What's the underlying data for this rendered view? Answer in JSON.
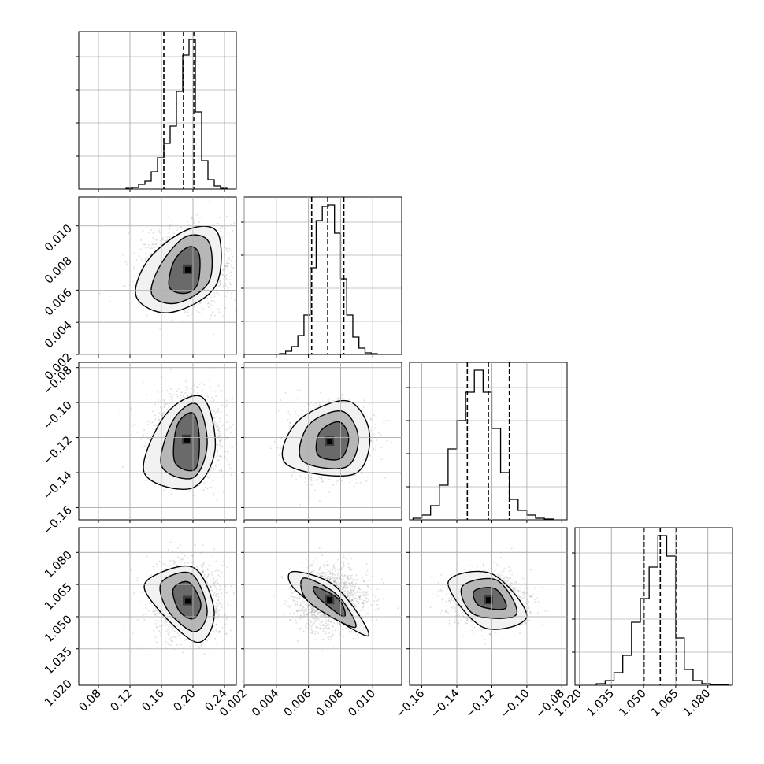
{
  "chart_data": {
    "type": "corner",
    "grid": true,
    "panel_ranges": [
      [
        0.055,
        0.255
      ],
      [
        0.002,
        0.0118
      ],
      [
        -0.167,
        -0.077
      ],
      [
        1.018,
        1.0915
      ]
    ],
    "tick_labels": {
      "x": [
        [
          "0.08",
          "0.12",
          "0.16",
          "0.20",
          "0.24"
        ],
        [
          "0.002",
          "0.004",
          "0.006",
          "0.008",
          "0.010"
        ],
        [
          "−0.16",
          "−0.14",
          "−0.12",
          "−0.10",
          "−0.08"
        ],
        [
          "1.020",
          "1.035",
          "1.050",
          "1.065",
          "1.080"
        ]
      ],
      "y": [
        [],
        [
          "0.002",
          "0.004",
          "0.006",
          "0.008",
          "0.010"
        ],
        [
          "−0.16",
          "−0.14",
          "−0.12",
          "−0.10",
          "−0.08"
        ],
        [
          "1.020",
          "1.035",
          "1.050",
          "1.065",
          "1.080"
        ]
      ]
    },
    "histograms": [
      {
        "param": 0,
        "bin_edges": [
          0.115,
          0.123,
          0.131,
          0.139,
          0.147,
          0.155,
          0.163,
          0.171,
          0.179,
          0.187,
          0.195,
          0.203,
          0.211,
          0.219,
          0.227,
          0.235,
          0.243
        ],
        "values": [
          0.005,
          0.01,
          0.03,
          0.05,
          0.11,
          0.2,
          0.29,
          0.4,
          0.62,
          0.85,
          0.95,
          0.49,
          0.18,
          0.06,
          0.02,
          0.005
        ],
        "quantiles": [
          0.163,
          0.188,
          0.201
        ]
      },
      {
        "param": 1,
        "bin_edges": [
          0.0042,
          0.00458,
          0.00496,
          0.00534,
          0.00572,
          0.0061,
          0.00648,
          0.00686,
          0.00724,
          0.00762,
          0.008,
          0.00838,
          0.00876,
          0.00914,
          0.00952,
          0.0099,
          0.01028
        ],
        "values": [
          0.005,
          0.02,
          0.05,
          0.12,
          0.25,
          0.55,
          0.85,
          0.94,
          0.95,
          0.77,
          0.48,
          0.25,
          0.11,
          0.04,
          0.01,
          0.005
        ],
        "quantiles": [
          0.0062,
          0.0072,
          0.0082
        ]
      },
      {
        "param": 2,
        "bin_edges": [
          -0.165,
          -0.16,
          -0.155,
          -0.15,
          -0.145,
          -0.14,
          -0.135,
          -0.13,
          -0.125,
          -0.12,
          -0.115,
          -0.11,
          -0.105,
          -0.1,
          -0.095,
          -0.09,
          -0.085
        ],
        "values": [
          0.01,
          0.03,
          0.09,
          0.22,
          0.45,
          0.63,
          0.81,
          0.95,
          0.81,
          0.58,
          0.3,
          0.13,
          0.06,
          0.03,
          0.01,
          0.005
        ],
        "quantiles": [
          -0.134,
          -0.122,
          -0.11
        ]
      },
      {
        "param": 3,
        "bin_edges": [
          1.028,
          1.0321,
          1.0362,
          1.0403,
          1.0444,
          1.0485,
          1.0526,
          1.0567,
          1.0608,
          1.0649,
          1.069,
          1.0731,
          1.0772,
          1.0813,
          1.0854,
          1.0895
        ],
        "values": [
          0.01,
          0.03,
          0.08,
          0.19,
          0.4,
          0.55,
          0.75,
          0.95,
          0.82,
          0.3,
          0.1,
          0.03,
          0.01,
          0.005,
          0.002
        ],
        "quantiles": [
          1.0502,
          1.0578,
          1.0651
        ]
      }
    ],
    "density_2d": [
      {
        "x_param": 0,
        "y_param": 1,
        "center": [
          0.193,
          0.0073
        ],
        "contour_sigma1": [
          [
            0.17,
            0.0062
          ],
          [
            0.176,
            0.0078
          ],
          [
            0.195,
            0.0087
          ],
          [
            0.208,
            0.0082
          ],
          [
            0.206,
            0.0064
          ],
          [
            0.19,
            0.0058
          ]
        ],
        "contour_sigma2": [
          [
            0.148,
            0.0057
          ],
          [
            0.158,
            0.0075
          ],
          [
            0.19,
            0.0093
          ],
          [
            0.22,
            0.009
          ],
          [
            0.22,
            0.0065
          ],
          [
            0.18,
            0.0052
          ]
        ],
        "contour_sigma3": [
          [
            0.128,
            0.0056
          ],
          [
            0.145,
            0.008
          ],
          [
            0.195,
            0.0098
          ],
          [
            0.232,
            0.0095
          ],
          [
            0.228,
            0.0062
          ],
          [
            0.17,
            0.0046
          ]
        ]
      },
      {
        "x_param": 0,
        "y_param": 2,
        "center": [
          0.192,
          -0.121
        ],
        "contour_sigma1": [
          [
            0.177,
            -0.134
          ],
          [
            0.18,
            -0.113
          ],
          [
            0.2,
            -0.106
          ],
          [
            0.208,
            -0.12
          ],
          [
            0.203,
            -0.138
          ]
        ],
        "contour_sigma2": [
          [
            0.16,
            -0.136
          ],
          [
            0.175,
            -0.11
          ],
          [
            0.205,
            -0.101
          ],
          [
            0.218,
            -0.124
          ],
          [
            0.2,
            -0.143
          ]
        ],
        "contour_sigma3": [
          [
            0.138,
            -0.14
          ],
          [
            0.165,
            -0.107
          ],
          [
            0.212,
            -0.097
          ],
          [
            0.228,
            -0.127
          ],
          [
            0.198,
            -0.149
          ]
        ]
      },
      {
        "x_param": 1,
        "y_param": 2,
        "center": [
          0.0073,
          -0.122
        ],
        "contour_sigma1": [
          [
            0.0066,
            -0.13
          ],
          [
            0.0067,
            -0.117
          ],
          [
            0.0079,
            -0.111
          ],
          [
            0.0085,
            -0.12
          ],
          [
            0.008,
            -0.132
          ]
        ],
        "contour_sigma2": [
          [
            0.0056,
            -0.133
          ],
          [
            0.006,
            -0.113
          ],
          [
            0.0081,
            -0.105
          ],
          [
            0.0091,
            -0.12
          ],
          [
            0.0083,
            -0.137
          ]
        ],
        "contour_sigma3": [
          [
            0.0046,
            -0.135
          ],
          [
            0.0053,
            -0.111
          ],
          [
            0.0084,
            -0.099
          ],
          [
            0.0098,
            -0.118
          ],
          [
            0.0088,
            -0.141
          ]
        ]
      },
      {
        "x_param": 0,
        "y_param": 3,
        "center": [
          0.193,
          1.0575
        ],
        "contour_sigma1": [
          [
            0.175,
            1.063
          ],
          [
            0.195,
            1.066
          ],
          [
            0.21,
            1.056
          ],
          [
            0.2,
            1.049
          ],
          [
            0.182,
            1.053
          ]
        ],
        "contour_sigma2": [
          [
            0.16,
            1.066
          ],
          [
            0.198,
            1.07
          ],
          [
            0.218,
            1.053
          ],
          [
            0.202,
            1.043
          ],
          [
            0.168,
            1.053
          ]
        ],
        "contour_sigma3": [
          [
            0.142,
            1.067
          ],
          [
            0.2,
            1.073
          ],
          [
            0.227,
            1.052
          ],
          [
            0.205,
            1.038
          ],
          [
            0.15,
            1.056
          ]
        ]
      },
      {
        "x_param": 1,
        "y_param": 3,
        "center": [
          0.0073,
          1.058
        ],
        "contour_sigma1": [
          [
            0.0064,
            1.064
          ],
          [
            0.0079,
            1.058
          ],
          [
            0.0082,
            1.05
          ],
          [
            0.0066,
            1.059
          ]
        ],
        "contour_sigma2": [
          [
            0.0057,
            1.068
          ],
          [
            0.0078,
            1.06
          ],
          [
            0.0089,
            1.045
          ],
          [
            0.006,
            1.057
          ]
        ],
        "contour_sigma3": [
          [
            0.005,
            1.071
          ],
          [
            0.0077,
            1.064
          ],
          [
            0.0097,
            1.041
          ],
          [
            0.0054,
            1.061
          ]
        ]
      },
      {
        "x_param": 2,
        "y_param": 3,
        "center": [
          -0.122,
          1.058
        ],
        "contour_sigma1": [
          [
            -0.13,
            1.062
          ],
          [
            -0.118,
            1.063
          ],
          [
            -0.112,
            1.054
          ],
          [
            -0.127,
            1.055
          ]
        ],
        "contour_sigma2": [
          [
            -0.137,
            1.064
          ],
          [
            -0.117,
            1.067
          ],
          [
            -0.106,
            1.051
          ],
          [
            -0.13,
            1.051
          ]
        ],
        "contour_sigma3": [
          [
            -0.145,
            1.066
          ],
          [
            -0.12,
            1.07
          ],
          [
            -0.1,
            1.05
          ],
          [
            -0.125,
            1.045
          ]
        ]
      }
    ]
  },
  "colors": {
    "axes": "#000000",
    "grid": "#b0b0b0",
    "hist_line": "#000000",
    "quantile_line": "#000000",
    "scatter_points": "#8c8c8c",
    "density_dark": "#000000",
    "density_light": "#ffffff"
  }
}
